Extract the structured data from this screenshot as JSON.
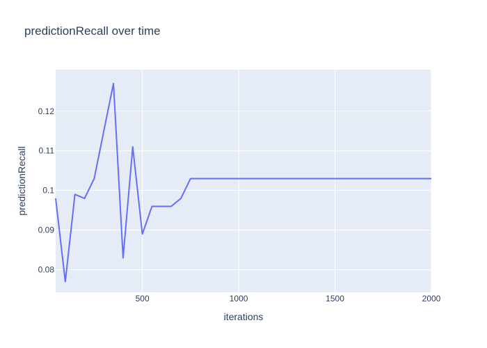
{
  "chart_data": {
    "type": "line",
    "title": "predictionRecall over time",
    "xlabel": "iterations",
    "ylabel": "predictionRecall",
    "xlim": [
      50,
      2000
    ],
    "ylim": [
      0.0743,
      0.1305
    ],
    "xticks": [
      500,
      1000,
      1500,
      2000
    ],
    "xtick_labels": [
      "500",
      "1000",
      "1500",
      "2000"
    ],
    "yticks": [
      0.08,
      0.09,
      0.1,
      0.11,
      0.12
    ],
    "ytick_labels": [
      "0.08",
      "0.09",
      "0.1",
      "0.11",
      "0.12"
    ],
    "grid": true,
    "colors": {
      "plot_background": "#e5ecf6",
      "grid": "#ffffff",
      "line": "#636efa",
      "text": "#2a3f5f"
    },
    "series": [
      {
        "x": [
          50,
          100,
          150,
          200,
          250,
          300,
          350,
          400,
          450,
          500,
          550,
          600,
          650,
          700,
          750,
          800,
          850,
          900,
          950,
          1000,
          1050,
          1100,
          1150,
          1200,
          1250,
          1300,
          1350,
          1400,
          1450,
          1500,
          1550,
          1600,
          1650,
          1700,
          1750,
          1800,
          1850,
          1900,
          1950,
          2000
        ],
        "values": [
          0.098,
          0.077,
          0.099,
          0.098,
          0.103,
          0.115,
          0.127,
          0.083,
          0.111,
          0.089,
          0.096,
          0.096,
          0.096,
          0.098,
          0.103,
          0.103,
          0.103,
          0.103,
          0.103,
          0.103,
          0.103,
          0.103,
          0.103,
          0.103,
          0.103,
          0.103,
          0.103,
          0.103,
          0.103,
          0.103,
          0.103,
          0.103,
          0.103,
          0.103,
          0.103,
          0.103,
          0.103,
          0.103,
          0.103,
          0.103
        ]
      }
    ]
  }
}
